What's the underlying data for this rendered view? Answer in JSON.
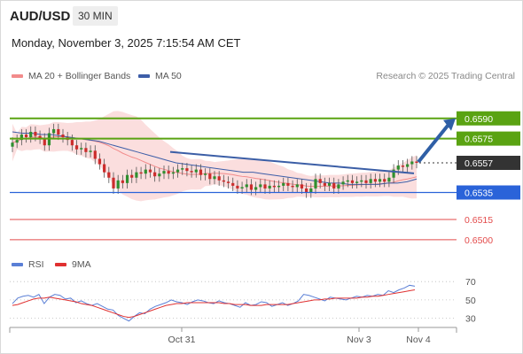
{
  "header": {
    "symbol": "AUD/USD",
    "timeframe": "30 MIN",
    "datetime": "Monday, November 3, 2025 7:15:54 AM CET"
  },
  "legend": {
    "ma20_label": "MA 20 + Bollinger Bands",
    "ma50_label": "MA 50",
    "credit": "Research © 2025 Trading Central",
    "rsi_label": "RSI",
    "rsi_ma_label": "9MA"
  },
  "colors": {
    "ma20": "#f28b8b",
    "bollinger_fill": "#fbdede",
    "ma50": "#3d5ea8",
    "resistance": "#5aa312",
    "support": "#2a63d9",
    "secondary_support": "#e34b4b",
    "current_price": "#333333",
    "candle_up": "#2f8f2f",
    "candle_down": "#cc2c2c",
    "rsi": "#5a7fd6",
    "rsi_ma": "#e03030",
    "forecast_arrow": "#2f5fa6"
  },
  "chart_data": [
    {
      "type": "candlestick",
      "title": "",
      "x_ticks": [
        "Oct 31",
        "Nov 3",
        "Nov 4"
      ],
      "ylim": [
        0.6492,
        0.6601
      ],
      "grid": false,
      "price_levels": [
        {
          "value": 0.659,
          "label": "0.6590",
          "kind": "resistance"
        },
        {
          "value": 0.6575,
          "label": "0.6575",
          "kind": "resistance"
        },
        {
          "value": 0.6557,
          "label": "0.6557",
          "kind": "current"
        },
        {
          "value": 0.6535,
          "label": "0.6535",
          "kind": "support"
        },
        {
          "value": 0.6515,
          "label": "0.6515",
          "kind": "secondary_support"
        },
        {
          "value": 0.65,
          "label": "0.6500",
          "kind": "secondary_support"
        }
      ],
      "close_series": [
        0.6572,
        0.6574,
        0.6578,
        0.6576,
        0.658,
        0.6577,
        0.6575,
        0.657,
        0.6579,
        0.6582,
        0.6578,
        0.6576,
        0.6574,
        0.657,
        0.6567,
        0.6568,
        0.6565,
        0.6566,
        0.656,
        0.6556,
        0.655,
        0.6546,
        0.6538,
        0.6544,
        0.6542,
        0.6548,
        0.6546,
        0.655,
        0.6549,
        0.6552,
        0.655,
        0.6547,
        0.6549,
        0.6551,
        0.6549,
        0.655,
        0.6552,
        0.6553,
        0.6551,
        0.655,
        0.6552,
        0.6548,
        0.6549,
        0.6545,
        0.6547,
        0.6544,
        0.6543,
        0.6542,
        0.654,
        0.6538,
        0.6539,
        0.6541,
        0.6537,
        0.6539,
        0.6541,
        0.6538,
        0.654,
        0.6539,
        0.654,
        0.6542,
        0.654,
        0.6539,
        0.6541,
        0.6538,
        0.6535,
        0.6538,
        0.6545,
        0.6542,
        0.654,
        0.6542,
        0.6538,
        0.6541,
        0.6543,
        0.6544,
        0.6542,
        0.6543,
        0.6544,
        0.6542,
        0.6545,
        0.6543,
        0.6545,
        0.6543,
        0.6546,
        0.6552,
        0.6555,
        0.6554,
        0.6556,
        0.6558,
        0.6557
      ],
      "ma50_series": [
        0.658,
        0.6579,
        0.6579,
        0.6578,
        0.6578,
        0.6577,
        0.6576,
        0.6575,
        0.6574,
        0.6573,
        0.6571,
        0.6569,
        0.6567,
        0.6565,
        0.6563,
        0.6561,
        0.6559,
        0.6557,
        0.6556,
        0.6555,
        0.6554,
        0.6553,
        0.6552,
        0.6551,
        0.655,
        0.655,
        0.6549,
        0.6548,
        0.6547,
        0.6546,
        0.6545,
        0.6544,
        0.6543,
        0.6542,
        0.6542,
        0.6541,
        0.6541,
        0.6541,
        0.6541,
        0.6542,
        0.6542,
        0.6543,
        0.6545
      ],
      "trendline": [
        {
          "index": 44,
          "value": 0.655
        },
        {
          "index": 113,
          "value": 0.654
        }
      ],
      "forecast_arrow": {
        "from": 0.6557,
        "to": 0.659
      }
    },
    {
      "type": "line",
      "title": "",
      "series": [
        {
          "name": "RSI",
          "values": [
            46,
            52,
            54,
            55,
            53,
            56,
            46,
            53,
            56,
            55,
            51,
            52,
            47,
            49,
            46,
            44,
            46,
            43,
            40,
            39,
            33,
            30,
            27,
            32,
            36,
            35,
            40,
            43,
            45,
            47,
            50,
            48,
            47,
            45,
            48,
            50,
            49,
            47,
            46,
            49,
            47,
            46,
            44,
            42,
            47,
            44,
            45,
            48,
            47,
            43,
            45,
            47,
            44,
            46,
            49,
            56,
            55,
            53,
            51,
            49,
            53,
            52,
            51,
            50,
            52,
            54,
            53,
            55,
            54,
            56,
            55,
            60,
            58,
            61,
            63,
            66,
            65
          ]
        },
        {
          "name": "9MA",
          "values": [
            44,
            45,
            47,
            49,
            51,
            52,
            52,
            53,
            52,
            51,
            50,
            49,
            48,
            46,
            45,
            44,
            42,
            40,
            38,
            36,
            34,
            32,
            31,
            32,
            34,
            36,
            38,
            40,
            42,
            44,
            45,
            46,
            46,
            47,
            47,
            47,
            47,
            47,
            47,
            47,
            46,
            46,
            45,
            45,
            45,
            44,
            44,
            44,
            45,
            45,
            45,
            45,
            45,
            46,
            47,
            48,
            49,
            50,
            50,
            51,
            51,
            52,
            52,
            52,
            52,
            52,
            53,
            53,
            54,
            54,
            55,
            56,
            57,
            58,
            59,
            60,
            61
          ]
        }
      ],
      "y_ticks": [
        "70",
        "50",
        "30"
      ],
      "ylim": [
        20,
        75
      ],
      "grid": false
    }
  ]
}
